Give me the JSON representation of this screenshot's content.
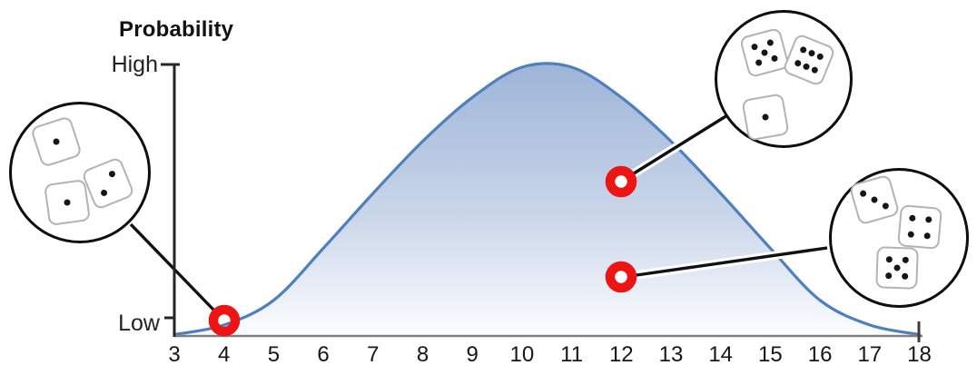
{
  "figure": {
    "y_axis_title": "Probability",
    "high_label": "High",
    "low_label": "Low"
  },
  "chart_data": {
    "type": "area",
    "title": "Probability",
    "x": [
      3,
      4,
      5,
      6,
      7,
      8,
      9,
      10,
      11,
      12,
      13,
      14,
      15,
      16,
      17,
      18
    ],
    "values": [
      0.005,
      0.04,
      0.13,
      0.32,
      0.52,
      0.71,
      0.87,
      0.98,
      0.98,
      0.87,
      0.71,
      0.52,
      0.32,
      0.13,
      0.04,
      0.005
    ],
    "xlabel": "",
    "ylabel": "Probability",
    "x_tick_labels": [
      "3",
      "4",
      "5",
      "6",
      "7",
      "8",
      "9",
      "10",
      "11",
      "12",
      "13",
      "14",
      "15",
      "16",
      "17",
      "18"
    ],
    "y_tick_labels": [
      "Low",
      "High"
    ],
    "xlim": [
      3,
      18
    ],
    "ylim": [
      0,
      1
    ],
    "grid": false,
    "legend": false,
    "line_color": "#4e80bf",
    "fill_top": "#9db4d8",
    "fill_mid": "#c9d5e9",
    "fill_bottom": "#fcfdff"
  },
  "markers": {
    "color": "#ed1414",
    "points": [
      {
        "x": 4
      },
      {
        "x": 12
      },
      {
        "x": 12
      }
    ]
  },
  "callouts": [
    {
      "name": "dice-sum-4",
      "dice": [
        1,
        1,
        2
      ],
      "points_to_x": 4
    },
    {
      "name": "dice-sum-12-a",
      "dice": [
        5,
        6,
        1
      ],
      "points_to_x": 12
    },
    {
      "name": "dice-sum-12-b",
      "dice": [
        3,
        4,
        5
      ],
      "points_to_x": 12
    }
  ],
  "axis_colors": {
    "x_axis": "#7f7f7f",
    "y_axis": "#262626",
    "end_tick": "#3d3d3d"
  }
}
